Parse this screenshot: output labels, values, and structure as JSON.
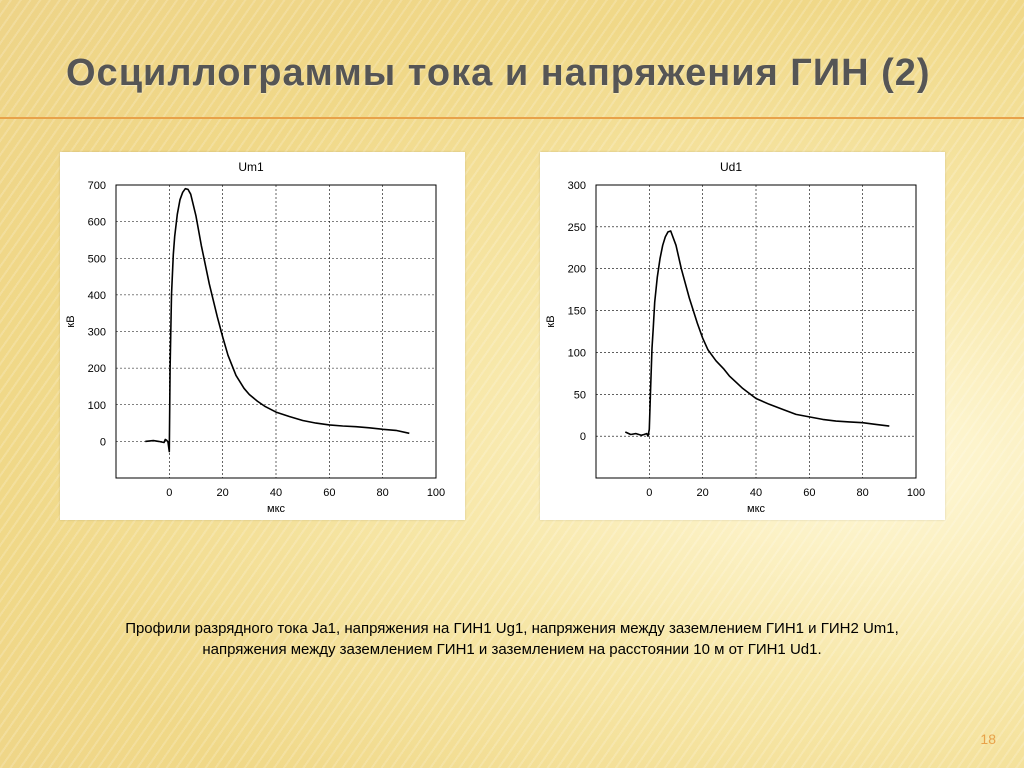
{
  "slide": {
    "title": "Осциллограммы тока и напряжения ГИН (2)",
    "caption_line1": "Профили разрядного тока Ja1, напряжения на ГИН1 Ug1, напряжения между заземлением ГИН1 и ГИН2 Um1,",
    "caption_line2": "напряжения между заземлением ГИН1 и заземлением на расстоянии 10 м от ГИН1 Ud1.",
    "page_number": "18"
  },
  "colors": {
    "accent": "#e8a24a",
    "title": "#555555",
    "background": "#f3dc95"
  },
  "chart_data": [
    {
      "type": "line",
      "title": "Um1",
      "xlabel": "мкс",
      "ylabel": "кВ",
      "xlim": [
        -20,
        100
      ],
      "ylim": [
        -100,
        700
      ],
      "xticks": [
        "0",
        "20",
        "40",
        "60",
        "80",
        "100"
      ],
      "yticks": [
        "0",
        "100",
        "200",
        "300",
        "400",
        "500",
        "600",
        "700"
      ],
      "grid": true,
      "series": [
        {
          "x": [
            -9,
            -6,
            -4,
            -2,
            -1.5,
            -1,
            -0.5,
            0,
            0.3,
            0.8,
            1.5,
            2,
            3,
            4,
            5,
            6,
            7,
            8,
            10,
            12,
            15,
            18,
            20,
            22,
            25,
            28,
            30,
            33,
            36,
            40,
            45,
            50,
            55,
            60,
            65,
            70,
            75,
            80,
            85,
            90
          ],
          "y": [
            0,
            2,
            0,
            -3,
            5,
            3,
            -2,
            -28,
            200,
            400,
            510,
            560,
            620,
            660,
            680,
            690,
            688,
            675,
            615,
            535,
            430,
            340,
            285,
            235,
            180,
            145,
            128,
            110,
            95,
            80,
            68,
            57,
            50,
            45,
            42,
            40,
            37,
            33,
            30,
            22
          ]
        }
      ]
    },
    {
      "type": "line",
      "title": "Ud1",
      "xlabel": "мкс",
      "ylabel": "кВ",
      "xlim": [
        -20,
        100
      ],
      "ylim": [
        -50,
        300
      ],
      "xticks": [
        "0",
        "20",
        "40",
        "60",
        "80",
        "100"
      ],
      "yticks": [
        "0",
        "50",
        "100",
        "150",
        "200",
        "250",
        "300"
      ],
      "grid": true,
      "series": [
        {
          "x": [
            -9,
            -7,
            -5,
            -3,
            -2,
            -1,
            -0.5,
            0,
            0.5,
            1,
            1.5,
            2,
            3,
            4,
            5,
            6,
            7,
            8,
            10,
            12,
            15,
            18,
            20,
            22,
            25,
            28,
            30,
            35,
            40,
            45,
            50,
            55,
            60,
            65,
            70,
            75,
            80,
            85,
            90
          ],
          "y": [
            5,
            2,
            3,
            1,
            2,
            3,
            0,
            8,
            60,
            105,
            130,
            160,
            190,
            212,
            228,
            238,
            244,
            245,
            228,
            200,
            165,
            135,
            117,
            103,
            90,
            80,
            72,
            57,
            45,
            38,
            32,
            26,
            23,
            20,
            18,
            17,
            16,
            14,
            12
          ]
        }
      ]
    }
  ]
}
